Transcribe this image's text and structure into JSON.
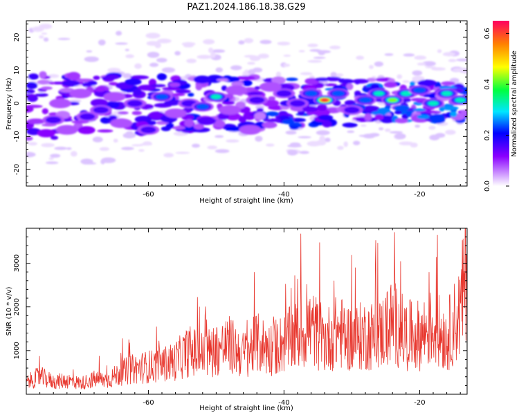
{
  "title": "PAZ1.2024.186.18.38.G29",
  "chart_data": [
    {
      "type": "heatmap",
      "xlabel": "Height of straight line (km)",
      "ylabel": "Frequency (Hz)",
      "xlim": [
        -78,
        -13
      ],
      "ylim": [
        -25,
        25
      ],
      "xticks": [
        -60,
        -40,
        -20
      ],
      "yticks": [
        -20,
        -10,
        0,
        10,
        20
      ],
      "colorbar": {
        "label": "Normalized spectral amplitude",
        "range": [
          0,
          0.65
        ],
        "ticks": [
          0.0,
          0.2,
          0.4,
          0.6
        ]
      },
      "blobs": [
        {
          "x": -74,
          "y": -5,
          "v": 0.18
        },
        {
          "x": -73,
          "y": 0,
          "v": 0.15
        },
        {
          "x": -72,
          "y": -8,
          "v": 0.12
        },
        {
          "x": -70,
          "y": 3,
          "v": 0.12
        },
        {
          "x": -69,
          "y": -4,
          "v": 0.2
        },
        {
          "x": -67,
          "y": -2,
          "v": 0.22
        },
        {
          "x": -65,
          "y": 2,
          "v": 0.15
        },
        {
          "x": -64,
          "y": -6,
          "v": 0.1
        },
        {
          "x": -62,
          "y": 0,
          "v": 0.2
        },
        {
          "x": -60,
          "y": -8,
          "v": 0.16
        },
        {
          "x": -58,
          "y": 2,
          "v": 0.3
        },
        {
          "x": -56,
          "y": -3,
          "v": 0.12
        },
        {
          "x": -54,
          "y": 0,
          "v": 0.22
        },
        {
          "x": -52,
          "y": -1,
          "v": 0.25
        },
        {
          "x": -50,
          "y": 2,
          "v": 0.32
        },
        {
          "x": -48,
          "y": -2,
          "v": 0.12
        },
        {
          "x": -47,
          "y": 4,
          "v": 0.15
        },
        {
          "x": -45,
          "y": -8,
          "v": 0.12
        },
        {
          "x": -44,
          "y": 1,
          "v": 0.22
        },
        {
          "x": -42,
          "y": 5,
          "v": 0.15
        },
        {
          "x": -40,
          "y": 3,
          "v": 0.22
        },
        {
          "x": -38,
          "y": 0,
          "v": 0.2
        },
        {
          "x": -36,
          "y": 3,
          "v": 0.3
        },
        {
          "x": -34,
          "y": 1,
          "v": 0.65
        },
        {
          "x": -32,
          "y": 3,
          "v": 0.28
        },
        {
          "x": -30,
          "y": -2,
          "v": 0.18
        },
        {
          "x": -28,
          "y": 1,
          "v": 0.3
        },
        {
          "x": -26,
          "y": 3,
          "v": 0.35
        },
        {
          "x": -24,
          "y": 1,
          "v": 0.45
        },
        {
          "x": -22,
          "y": 3,
          "v": 0.36
        },
        {
          "x": -20,
          "y": 4,
          "v": 0.3
        },
        {
          "x": -18,
          "y": 0,
          "v": 0.35
        },
        {
          "x": -16,
          "y": 3,
          "v": 0.38
        },
        {
          "x": -14,
          "y": 1,
          "v": 0.35
        }
      ]
    },
    {
      "type": "line",
      "xlabel": "Height of straight line (km)",
      "ylabel": "SNR (10 * v/v)",
      "xlim": [
        -78,
        -13
      ],
      "ylim": [
        0,
        3800
      ],
      "xticks": [
        -60,
        -40,
        -20
      ],
      "yticks": [
        1000,
        2000,
        3000
      ],
      "color": "#e8372e",
      "series": [
        {
          "x": [
            -78,
            -76,
            -74,
            -72,
            -70,
            -68,
            -66,
            -64,
            -62,
            -60,
            -58,
            -56,
            -54,
            -52,
            -50,
            -48,
            -46,
            -44,
            -42,
            -40,
            -38,
            -36,
            -34,
            -32,
            -30,
            -28,
            -26,
            -24,
            -22,
            -20,
            -18,
            -16,
            -14,
            -13
          ],
          "values": [
            300,
            450,
            320,
            350,
            280,
            380,
            360,
            550,
            650,
            700,
            750,
            850,
            1100,
            1000,
            1150,
            1250,
            1000,
            1300,
            1150,
            1300,
            1500,
            1700,
            1350,
            1600,
            1400,
            1500,
            1500,
            1850,
            1500,
            1500,
            1700,
            1450,
            2100,
            3300
          ]
        }
      ]
    }
  ]
}
